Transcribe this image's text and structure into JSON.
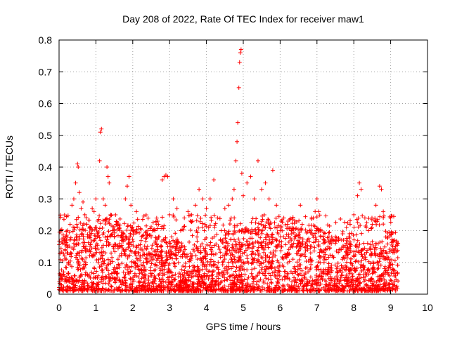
{
  "chart_data": {
    "type": "scatter",
    "title": "Day 208 of 2022, Rate Of TEC Index for receiver maw1",
    "xlabel": "GPS time / hours",
    "ylabel": "ROTI / TECUs",
    "xlim": [
      0,
      10
    ],
    "ylim": [
      0,
      0.8
    ],
    "x_ticks": [
      "0",
      "1",
      "2",
      "3",
      "4",
      "5",
      "6",
      "7",
      "8",
      "9",
      "10"
    ],
    "y_ticks": [
      "0",
      "0.1",
      "0.2",
      "0.3",
      "0.4",
      "0.5",
      "0.6",
      "0.7",
      "0.8"
    ],
    "grid": true,
    "marker": "plus",
    "series_color": "#ff0000",
    "x_data_range": [
      0,
      9.2
    ],
    "points": [
      [
        0.05,
        0.03
      ],
      [
        0.1,
        0.06
      ],
      [
        0.15,
        0.12
      ],
      [
        0.2,
        0.17
      ],
      [
        0.25,
        0.1
      ],
      [
        0.3,
        0.22
      ],
      [
        0.35,
        0.28
      ],
      [
        0.4,
        0.3
      ],
      [
        0.45,
        0.35
      ],
      [
        0.5,
        0.41
      ],
      [
        0.52,
        0.4
      ],
      [
        0.55,
        0.32
      ],
      [
        0.6,
        0.27
      ],
      [
        0.65,
        0.29
      ],
      [
        0.7,
        0.25
      ],
      [
        0.75,
        0.22
      ],
      [
        0.8,
        0.18
      ],
      [
        0.85,
        0.21
      ],
      [
        0.9,
        0.27
      ],
      [
        0.95,
        0.26
      ],
      [
        1.0,
        0.3
      ],
      [
        1.05,
        0.23
      ],
      [
        1.1,
        0.42
      ],
      [
        1.12,
        0.51
      ],
      [
        1.15,
        0.52
      ],
      [
        1.2,
        0.3
      ],
      [
        1.25,
        0.28
      ],
      [
        1.3,
        0.4
      ],
      [
        1.33,
        0.37
      ],
      [
        1.36,
        0.35
      ],
      [
        1.4,
        0.25
      ],
      [
        1.45,
        0.2
      ],
      [
        1.5,
        0.18
      ],
      [
        1.55,
        0.22
      ],
      [
        1.6,
        0.15
      ],
      [
        1.65,
        0.12
      ],
      [
        1.7,
        0.18
      ],
      [
        1.8,
        0.3
      ],
      [
        1.85,
        0.34
      ],
      [
        1.9,
        0.37
      ],
      [
        1.95,
        0.28
      ],
      [
        2.0,
        0.2
      ],
      [
        2.1,
        0.26
      ],
      [
        2.2,
        0.12
      ],
      [
        2.3,
        0.1
      ],
      [
        2.4,
        0.15
      ],
      [
        2.5,
        0.18
      ],
      [
        2.6,
        0.2
      ],
      [
        2.65,
        0.22
      ],
      [
        2.7,
        0.18
      ],
      [
        2.8,
        0.36
      ],
      [
        2.85,
        0.37
      ],
      [
        2.9,
        0.375
      ],
      [
        2.95,
        0.37
      ],
      [
        3.0,
        0.25
      ],
      [
        3.1,
        0.3
      ],
      [
        3.2,
        0.27
      ],
      [
        3.3,
        0.2
      ],
      [
        3.4,
        0.24
      ],
      [
        3.5,
        0.26
      ],
      [
        3.6,
        0.25
      ],
      [
        3.7,
        0.28
      ],
      [
        3.8,
        0.33
      ],
      [
        3.9,
        0.3
      ],
      [
        4.0,
        0.27
      ],
      [
        4.1,
        0.3
      ],
      [
        4.2,
        0.36
      ],
      [
        4.3,
        0.24
      ],
      [
        4.4,
        0.2
      ],
      [
        4.5,
        0.27
      ],
      [
        4.6,
        0.28
      ],
      [
        4.7,
        0.3
      ],
      [
        4.75,
        0.33
      ],
      [
        4.8,
        0.42
      ],
      [
        4.83,
        0.48
      ],
      [
        4.85,
        0.54
      ],
      [
        4.88,
        0.65
      ],
      [
        4.9,
        0.73
      ],
      [
        4.92,
        0.76
      ],
      [
        4.94,
        0.77
      ],
      [
        4.96,
        0.38
      ],
      [
        5.0,
        0.31
      ],
      [
        5.1,
        0.35
      ],
      [
        5.2,
        0.37
      ],
      [
        5.3,
        0.3
      ],
      [
        5.4,
        0.42
      ],
      [
        5.5,
        0.33
      ],
      [
        5.6,
        0.35
      ],
      [
        5.7,
        0.3
      ],
      [
        5.8,
        0.39
      ],
      [
        5.9,
        0.28
      ],
      [
        6.0,
        0.2
      ],
      [
        6.1,
        0.24
      ],
      [
        6.2,
        0.22
      ],
      [
        6.3,
        0.2
      ],
      [
        6.4,
        0.18
      ],
      [
        6.5,
        0.16
      ],
      [
        6.55,
        0.28
      ],
      [
        6.6,
        0.22
      ],
      [
        6.7,
        0.15
      ],
      [
        6.8,
        0.2
      ],
      [
        6.9,
        0.24
      ],
      [
        6.95,
        0.26
      ],
      [
        7.0,
        0.3
      ],
      [
        7.05,
        0.26
      ],
      [
        7.1,
        0.2
      ],
      [
        7.2,
        0.17
      ],
      [
        7.3,
        0.15
      ],
      [
        7.4,
        0.18
      ],
      [
        7.5,
        0.16
      ],
      [
        7.6,
        0.14
      ],
      [
        7.7,
        0.19
      ],
      [
        7.8,
        0.21
      ],
      [
        7.9,
        0.22
      ],
      [
        8.0,
        0.25
      ],
      [
        8.1,
        0.31
      ],
      [
        8.15,
        0.35
      ],
      [
        8.2,
        0.33
      ],
      [
        8.3,
        0.24
      ],
      [
        8.4,
        0.2
      ],
      [
        8.5,
        0.22
      ],
      [
        8.6,
        0.28
      ],
      [
        8.7,
        0.34
      ],
      [
        8.75,
        0.33
      ],
      [
        8.8,
        0.26
      ],
      [
        8.9,
        0.18
      ],
      [
        9.0,
        0.24
      ],
      [
        9.1,
        0.17
      ],
      [
        9.2,
        0.16
      ]
    ],
    "note_dense_band": "dense cloud of points between 0 and ~0.18 across 0 to 9.2 hours"
  }
}
